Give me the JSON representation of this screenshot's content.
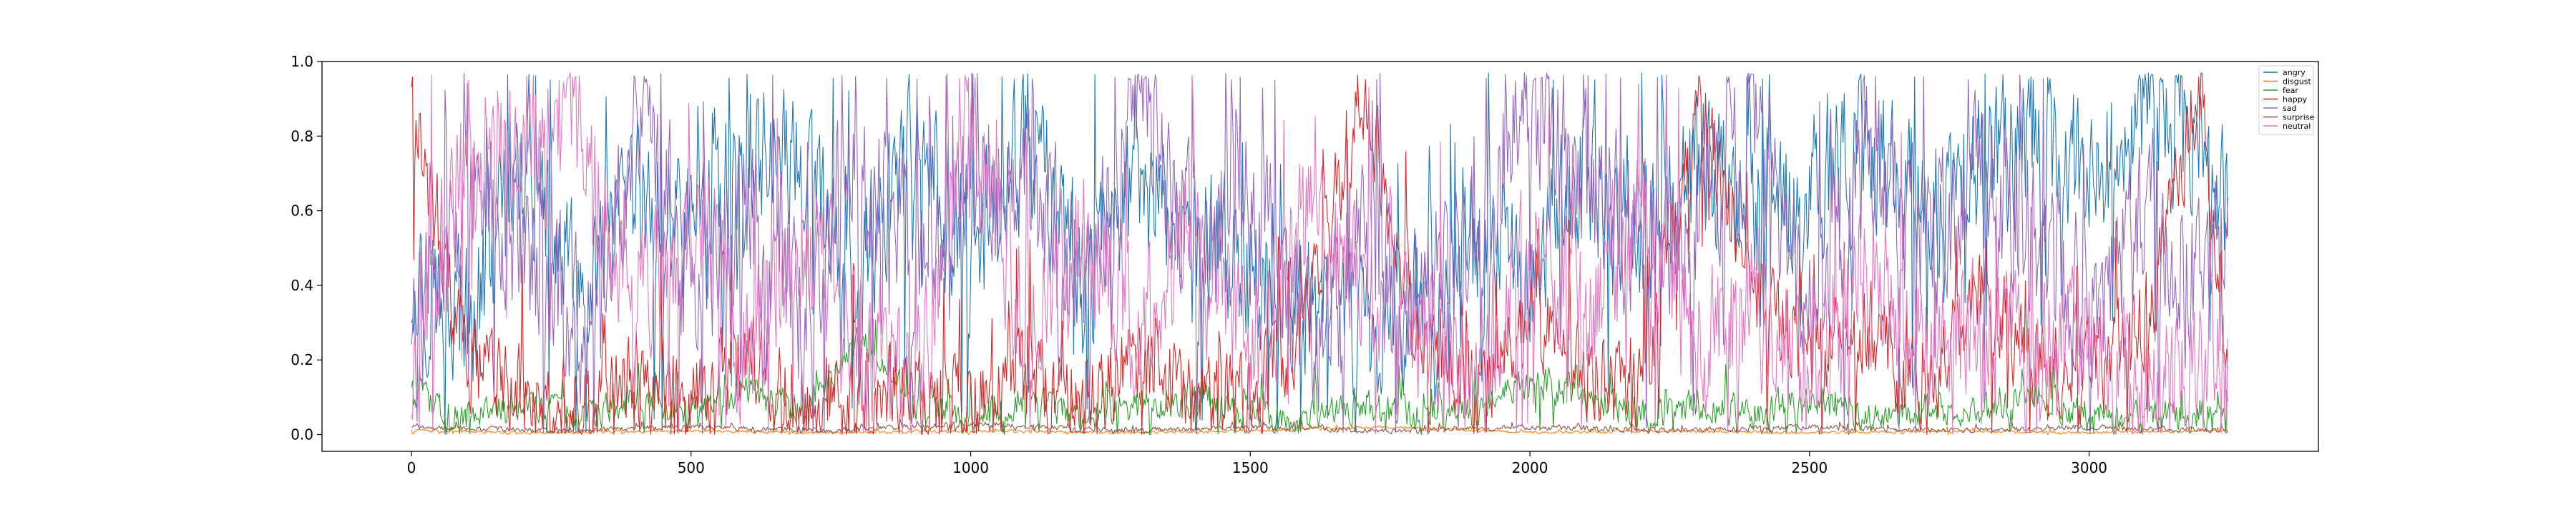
{
  "chart_data": {
    "type": "line",
    "title": "",
    "xlabel": "",
    "ylabel": "",
    "xlim": [
      -160,
      3410
    ],
    "ylim": [
      -0.045,
      1.0
    ],
    "x_ticks": [
      0,
      500,
      1000,
      1500,
      2000,
      2500,
      3000
    ],
    "y_ticks": [
      0.0,
      0.2,
      0.4,
      0.6,
      0.8,
      1.0
    ],
    "x_tick_labels": [
      "0",
      "500",
      "1000",
      "1500",
      "2000",
      "2500",
      "3000"
    ],
    "y_tick_labels": [
      "0.0",
      "0.2",
      "0.4",
      "0.6",
      "0.8",
      "1.0"
    ],
    "grid": false,
    "legend_position": "top-right",
    "n_points": 3250,
    "series": [
      {
        "name": "angry",
        "color": "#1f77b4",
        "x": [
          0,
          100,
          200,
          300,
          400,
          500,
          600,
          700,
          800,
          900,
          1000,
          1100,
          1200,
          1300,
          1400,
          1500,
          1600,
          1700,
          1800,
          1900,
          2000,
          2100,
          2200,
          2300,
          2400,
          2500,
          2600,
          2700,
          2800,
          2900,
          3000,
          3100,
          3200,
          3250
        ],
        "values": [
          0.45,
          0.3,
          0.72,
          0.35,
          0.6,
          0.55,
          0.8,
          0.7,
          0.45,
          0.75,
          0.5,
          0.78,
          0.4,
          0.65,
          0.55,
          0.42,
          0.38,
          0.3,
          0.35,
          0.5,
          0.45,
          0.68,
          0.55,
          0.72,
          0.6,
          0.65,
          0.75,
          0.62,
          0.7,
          0.8,
          0.72,
          0.88,
          0.78,
          0.6
        ]
      },
      {
        "name": "disgust",
        "color": "#ff7f0e",
        "x": [
          0,
          250,
          500,
          750,
          1000,
          1250,
          1500,
          1750,
          2000,
          2250,
          2500,
          2750,
          3000,
          3250
        ],
        "values": [
          0.01,
          0.005,
          0.01,
          0.005,
          0.01,
          0.005,
          0.01,
          0.02,
          0.005,
          0.01,
          0.005,
          0.01,
          0.005,
          0.01
        ]
      },
      {
        "name": "fear",
        "color": "#2ca02c",
        "x": [
          0,
          100,
          200,
          300,
          400,
          500,
          600,
          700,
          800,
          900,
          1000,
          1100,
          1200,
          1300,
          1400,
          1500,
          1600,
          1700,
          1800,
          1900,
          2000,
          2100,
          2200,
          2300,
          2400,
          2500,
          2600,
          2700,
          2800,
          2900,
          3000,
          3100,
          3200,
          3250
        ],
        "values": [
          0.1,
          0.05,
          0.08,
          0.04,
          0.1,
          0.06,
          0.12,
          0.05,
          0.25,
          0.08,
          0.04,
          0.1,
          0.05,
          0.08,
          0.1,
          0.06,
          0.04,
          0.08,
          0.05,
          0.06,
          0.15,
          0.1,
          0.05,
          0.08,
          0.06,
          0.1,
          0.05,
          0.07,
          0.06,
          0.1,
          0.05,
          0.04,
          0.06,
          0.03
        ]
      },
      {
        "name": "happy",
        "color": "#d62728",
        "x": [
          0,
          100,
          200,
          300,
          400,
          500,
          600,
          700,
          800,
          900,
          1000,
          1100,
          1200,
          1300,
          1400,
          1500,
          1600,
          1700,
          1800,
          1900,
          2000,
          2100,
          2200,
          2300,
          2400,
          2500,
          2600,
          2700,
          2800,
          2900,
          3000,
          3100,
          3200,
          3250
        ],
        "values": [
          0.88,
          0.2,
          0.1,
          0.05,
          0.15,
          0.1,
          0.2,
          0.08,
          0.12,
          0.1,
          0.05,
          0.15,
          0.1,
          0.2,
          0.05,
          0.1,
          0.3,
          0.95,
          0.25,
          0.1,
          0.3,
          0.15,
          0.1,
          0.9,
          0.4,
          0.2,
          0.3,
          0.1,
          0.4,
          0.2,
          0.15,
          0.3,
          0.95,
          0.1
        ]
      },
      {
        "name": "sad",
        "color": "#9467bd",
        "x": [
          0,
          100,
          200,
          300,
          400,
          500,
          600,
          700,
          800,
          900,
          1000,
          1100,
          1200,
          1300,
          1400,
          1500,
          1600,
          1700,
          1800,
          1900,
          2000,
          2100,
          2200,
          2300,
          2400,
          2500,
          2600,
          2700,
          2800,
          2900,
          3000,
          3100,
          3200,
          3250
        ],
        "values": [
          0.2,
          0.75,
          0.5,
          0.3,
          0.8,
          0.4,
          0.6,
          0.3,
          0.75,
          0.5,
          0.6,
          0.7,
          0.4,
          0.9,
          0.5,
          0.6,
          0.2,
          0.5,
          0.3,
          0.6,
          0.92,
          0.7,
          0.5,
          0.6,
          0.85,
          0.3,
          0.75,
          0.5,
          0.7,
          0.55,
          0.3,
          0.6,
          0.35,
          0.7
        ]
      },
      {
        "name": "surprise",
        "color": "#8c564b",
        "x": [
          0,
          250,
          500,
          750,
          1000,
          1250,
          1500,
          1750,
          2000,
          2250,
          2500,
          2750,
          3000,
          3250
        ],
        "values": [
          0.02,
          0.01,
          0.02,
          0.01,
          0.03,
          0.01,
          0.02,
          0.01,
          0.02,
          0.01,
          0.02,
          0.01,
          0.02,
          0.01
        ]
      },
      {
        "name": "neutral",
        "color": "#e377c2",
        "x": [
          0,
          100,
          200,
          300,
          400,
          500,
          600,
          700,
          800,
          900,
          1000,
          1100,
          1200,
          1300,
          1400,
          1500,
          1600,
          1700,
          1800,
          1900,
          2000,
          2100,
          2200,
          2300,
          2400,
          2500,
          2600,
          2700,
          2800,
          2900,
          3000,
          3100,
          3200,
          3250
        ],
        "values": [
          0.1,
          0.85,
          0.8,
          0.82,
          0.3,
          0.6,
          0.2,
          0.5,
          0.3,
          0.1,
          0.87,
          0.3,
          0.5,
          0.25,
          0.6,
          0.2,
          0.6,
          0.4,
          0.3,
          0.15,
          0.55,
          0.3,
          0.6,
          0.2,
          0.35,
          0.15,
          0.5,
          0.25,
          0.3,
          0.2,
          0.25,
          0.1,
          0.2,
          0.15
        ]
      }
    ]
  }
}
